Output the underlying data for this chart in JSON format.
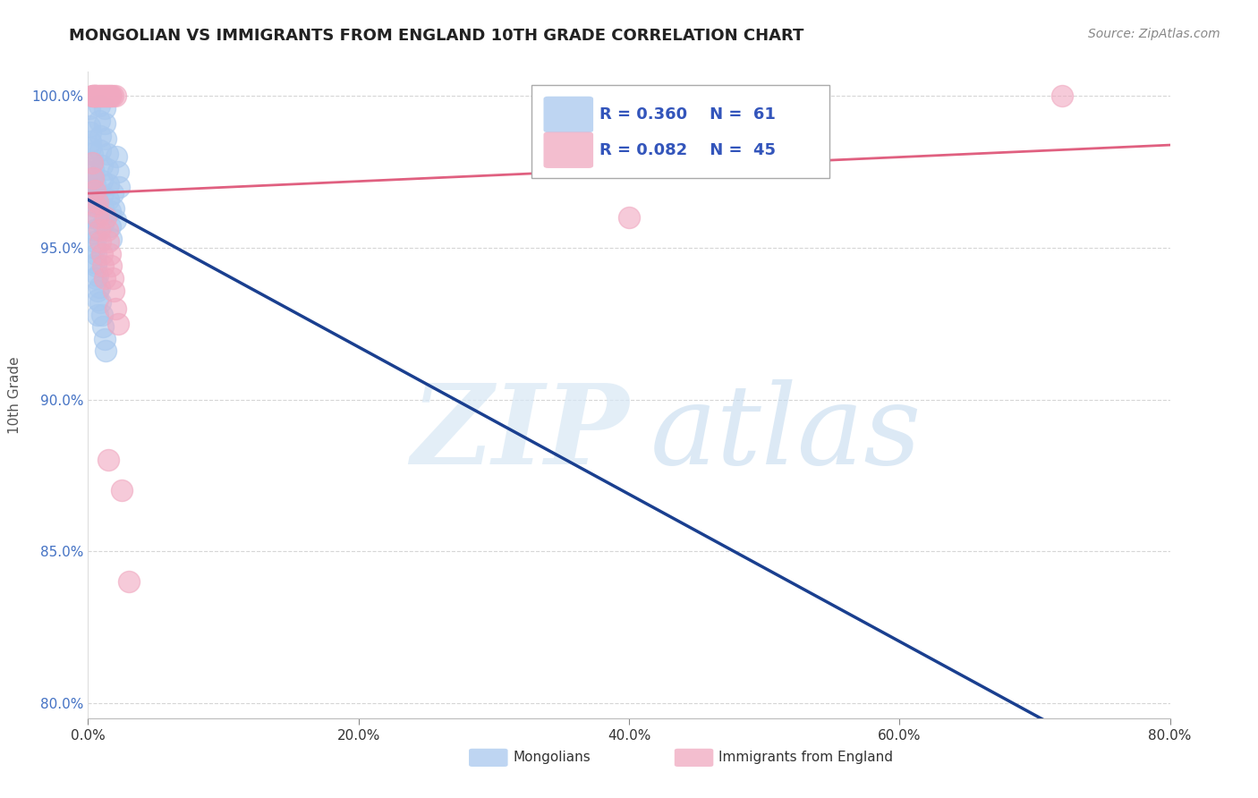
{
  "title": "MONGOLIAN VS IMMIGRANTS FROM ENGLAND 10TH GRADE CORRELATION CHART",
  "source": "Source: ZipAtlas.com",
  "ylabel": "10th Grade",
  "xlim": [
    0.0,
    0.8
  ],
  "ylim": [
    0.795,
    1.008
  ],
  "yticks": [
    0.8,
    0.85,
    0.9,
    0.95,
    1.0
  ],
  "ytick_labels": [
    "80.0%",
    "85.0%",
    "90.0%",
    "95.0%",
    "100.0%"
  ],
  "xticks": [
    0.0,
    0.2,
    0.4,
    0.6,
    0.8
  ],
  "xtick_labels": [
    "0.0%",
    "20.0%",
    "40.0%",
    "60.0%",
    "80.0%"
  ],
  "legend_R_blue": "R = 0.360",
  "legend_N_blue": "N =  61",
  "legend_R_pink": "R = 0.082",
  "legend_N_pink": "N =  45",
  "blue_color": "#A8C8EE",
  "pink_color": "#F0A8C0",
  "blue_line_color": "#1a3f8f",
  "pink_line_color": "#E06080",
  "mongolian_x": [
    0.001,
    0.001,
    0.002,
    0.002,
    0.003,
    0.003,
    0.004,
    0.004,
    0.005,
    0.005,
    0.005,
    0.006,
    0.006,
    0.006,
    0.007,
    0.007,
    0.007,
    0.008,
    0.008,
    0.009,
    0.009,
    0.01,
    0.01,
    0.01,
    0.011,
    0.011,
    0.012,
    0.012,
    0.013,
    0.014,
    0.014,
    0.015,
    0.015,
    0.016,
    0.016,
    0.017,
    0.018,
    0.019,
    0.02,
    0.021,
    0.022,
    0.023,
    0.001,
    0.001,
    0.002,
    0.003,
    0.004,
    0.005,
    0.006,
    0.007,
    0.008,
    0.009,
    0.01,
    0.011,
    0.012,
    0.013,
    0.002,
    0.003,
    0.004,
    0.005,
    0.006
  ],
  "mongolian_y": [
    0.996,
    0.99,
    0.988,
    0.983,
    0.978,
    0.973,
    0.969,
    0.964,
    0.96,
    0.956,
    0.952,
    0.948,
    0.944,
    0.94,
    0.936,
    0.933,
    0.928,
    0.997,
    0.992,
    0.987,
    0.982,
    0.977,
    0.972,
    0.967,
    0.963,
    0.958,
    0.996,
    0.991,
    0.986,
    0.981,
    0.976,
    0.971,
    0.966,
    0.962,
    0.957,
    0.953,
    0.968,
    0.963,
    0.959,
    0.98,
    0.975,
    0.97,
    0.975,
    0.97,
    0.965,
    0.96,
    0.955,
    0.95,
    0.945,
    0.941,
    0.937,
    0.932,
    0.928,
    0.924,
    0.92,
    0.916,
    0.985,
    0.981,
    0.976,
    0.971,
    0.967
  ],
  "england_x": [
    0.003,
    0.004,
    0.004,
    0.005,
    0.005,
    0.006,
    0.006,
    0.007,
    0.008,
    0.009,
    0.01,
    0.011,
    0.012,
    0.013,
    0.014,
    0.015,
    0.016,
    0.017,
    0.018,
    0.02,
    0.003,
    0.004,
    0.005,
    0.006,
    0.007,
    0.008,
    0.009,
    0.01,
    0.011,
    0.012,
    0.013,
    0.014,
    0.015,
    0.016,
    0.017,
    0.018,
    0.019,
    0.02,
    0.022,
    0.025,
    0.007,
    0.015,
    0.03,
    0.4,
    0.72
  ],
  "england_y": [
    1.0,
    1.0,
    1.0,
    1.0,
    1.0,
    1.0,
    1.0,
    1.0,
    1.0,
    1.0,
    1.0,
    1.0,
    1.0,
    1.0,
    1.0,
    1.0,
    1.0,
    1.0,
    1.0,
    1.0,
    0.978,
    0.973,
    0.969,
    0.964,
    0.96,
    0.956,
    0.952,
    0.948,
    0.944,
    0.94,
    0.96,
    0.956,
    0.952,
    0.948,
    0.944,
    0.94,
    0.936,
    0.93,
    0.925,
    0.87,
    0.965,
    0.88,
    0.84,
    0.96,
    1.0
  ]
}
